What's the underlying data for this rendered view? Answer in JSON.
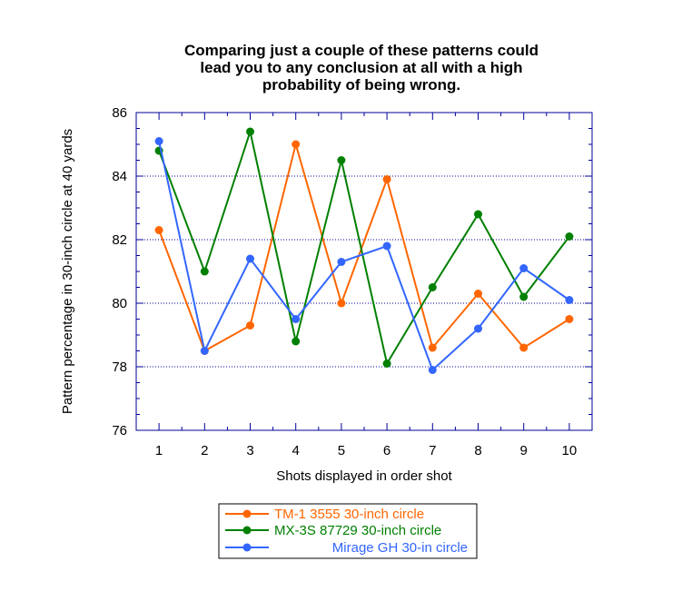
{
  "chart_data": {
    "type": "line",
    "title": [
      "Comparing just a couple of these patterns could",
      "lead you to any conclusion at all with a high",
      "probability of being wrong."
    ],
    "xlabel": "Shots displayed in order shot",
    "ylabel": "Pattern percentage in 30-inch circle at 40 yards",
    "x": [
      1,
      2,
      3,
      4,
      5,
      6,
      7,
      8,
      9,
      10
    ],
    "xlim": [
      0.5,
      10.5
    ],
    "ylim": [
      76,
      86
    ],
    "yticks": [
      76,
      78,
      80,
      82,
      84,
      86
    ],
    "grid": "horizontal dotted at major y ticks",
    "legend_position": "bottom-center",
    "series": [
      {
        "name": "TM-1 3555 30-inch circle",
        "color": "#ff6600",
        "values": [
          82.3,
          78.5,
          79.3,
          85.0,
          80.0,
          83.9,
          78.6,
          80.3,
          78.6,
          79.5
        ]
      },
      {
        "name": "MX-3S 87729  30-inch circle",
        "color": "#008000",
        "values": [
          84.8,
          81.0,
          85.4,
          78.8,
          84.5,
          78.1,
          80.5,
          82.8,
          80.2,
          82.1
        ]
      },
      {
        "name": "Mirage GH 30-in circle",
        "color": "#3366ff",
        "values": [
          85.1,
          78.5,
          81.4,
          79.5,
          81.3,
          81.8,
          77.9,
          79.2,
          81.1,
          80.1
        ]
      }
    ],
    "frame_color": "#000099",
    "grid_color": "#000099"
  }
}
